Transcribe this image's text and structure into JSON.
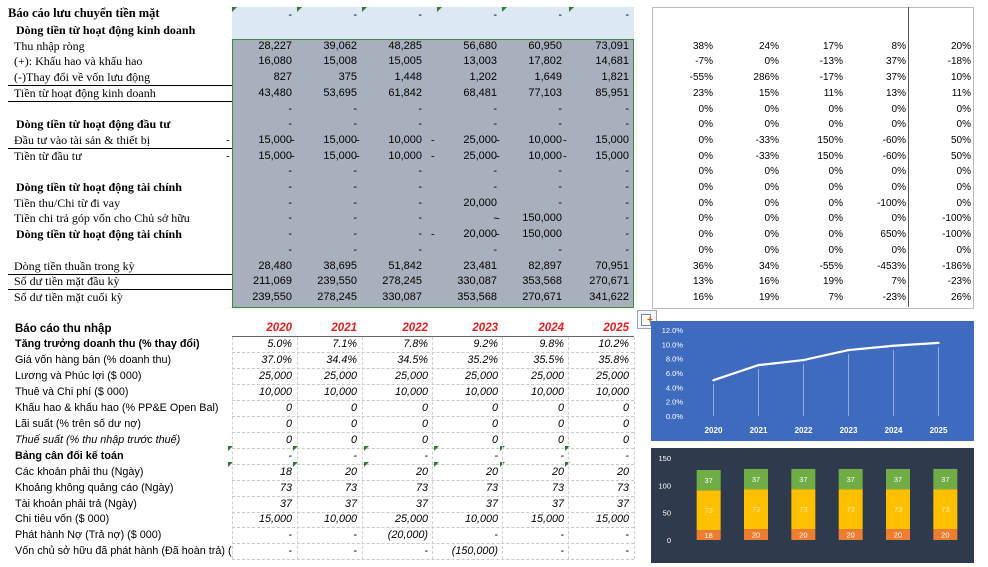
{
  "cashflow": {
    "title": "Báo cáo lưu chuyển tiền mặt",
    "rows": [
      {
        "label": "Dòng tiền từ hoạt động kinh doanh",
        "bold": true,
        "indent": 1,
        "values": [
          "",
          "",
          "",
          "",
          "",
          ""
        ],
        "pct": []
      },
      {
        "label": "Thu nhập ròng",
        "values": [
          "28,227",
          "39,062",
          "48,285",
          "56,680",
          "60,950",
          "73,091"
        ],
        "pct": [
          "38%",
          "24%",
          "17%",
          "8%",
          "20%"
        ]
      },
      {
        "label": "(+): Khấu hao và khấu hao",
        "values": [
          "16,080",
          "15,008",
          "15,005",
          "13,003",
          "17,802",
          "14,681"
        ],
        "pct": [
          "-7%",
          "0%",
          "-13%",
          "37%",
          "-18%"
        ]
      },
      {
        "label": "(-)Thay đổi về vốn lưu động",
        "values": [
          "827",
          "375",
          "1,448",
          "1,202",
          "1,649",
          "1,821"
        ],
        "pct": [
          "-55%",
          "286%",
          "-17%",
          "37%",
          "10%"
        ]
      },
      {
        "label": "Tiền từ hoạt động kinh doanh",
        "values": [
          "43,480",
          "53,695",
          "61,842",
          "68,481",
          "77,103",
          "85,951"
        ],
        "pct": [
          "23%",
          "15%",
          "11%",
          "13%",
          "11%"
        ]
      },
      {
        "label": "",
        "values": [
          "-",
          "-",
          "-",
          "-",
          "-",
          "-"
        ],
        "pct": [
          "0%",
          "0%",
          "0%",
          "0%",
          "0%"
        ]
      },
      {
        "label": "Dòng tiền từ hoạt động đầu tư",
        "bold": true,
        "values": [
          "-",
          "-",
          "-",
          "-",
          "-",
          "-"
        ],
        "pct": [
          "0%",
          "0%",
          "0%",
          "0%",
          "0%"
        ]
      },
      {
        "label": "Đầu tư vào tài sản & thiết bị",
        "values": [
          "15,000",
          "15,000",
          "10,000",
          "25,000",
          "10,000",
          "15,000"
        ],
        "pct": [
          "0%",
          "-33%",
          "150%",
          "-60%",
          "50%"
        ]
      },
      {
        "label": "Tiền từ đầu tư",
        "values": [
          "15,000",
          "15,000",
          "10,000",
          "25,000",
          "10,000",
          "15,000"
        ],
        "pct": [
          "0%",
          "-33%",
          "150%",
          "-60%",
          "50%"
        ]
      },
      {
        "label": "",
        "values": [
          "-",
          "-",
          "-",
          "-",
          "-",
          "-"
        ],
        "pct": [
          "0%",
          "0%",
          "0%",
          "0%",
          "0%"
        ]
      },
      {
        "label": "Dòng tiền từ hoạt động tài chính",
        "bold": true,
        "values": [
          "-",
          "-",
          "-",
          "-",
          "-",
          "-"
        ],
        "pct": [
          "0%",
          "0%",
          "0%",
          "0%",
          "0%"
        ]
      },
      {
        "label": "Tiền thu/Chi từ đi vay",
        "values": [
          "-",
          "-",
          "-",
          "20,000",
          "-",
          "-"
        ],
        "pct": [
          "0%",
          "0%",
          "0%",
          "-100%",
          "0%"
        ]
      },
      {
        "label": "Tiền chi trả góp vốn cho Chủ sở hữu",
        "values": [
          "-",
          "-",
          "-",
          "-",
          "150,000",
          "-"
        ],
        "pct": [
          "0%",
          "0%",
          "0%",
          "0%",
          "-100%"
        ]
      },
      {
        "label": "Dòng tiền từ hoạt động tài chính",
        "bold": true,
        "values": [
          "-",
          "-",
          "-",
          "20,000",
          "150,000",
          "-"
        ],
        "pct": [
          "0%",
          "0%",
          "0%",
          "650%",
          "-100%"
        ]
      },
      {
        "label": "",
        "values": [
          "-",
          "-",
          "-",
          "-",
          "-",
          "-"
        ],
        "pct": [
          "0%",
          "0%",
          "0%",
          "0%",
          "0%"
        ]
      },
      {
        "label": "Dòng tiền thuần trong kỳ",
        "values": [
          "28,480",
          "38,695",
          "51,842",
          "23,481",
          "82,897",
          "70,951"
        ],
        "pct": [
          "36%",
          "34%",
          "-55%",
          "-453%",
          "-186%"
        ]
      },
      {
        "label": "Số dư tiền mặt đầu kỳ",
        "values": [
          "211,069",
          "239,550",
          "278,245",
          "330,087",
          "353,568",
          "270,671"
        ],
        "pct": [
          "13%",
          "16%",
          "19%",
          "7%",
          "-23%"
        ]
      },
      {
        "label": "Số dư tiền mặt cuối kỳ",
        "values": [
          "239,550",
          "278,245",
          "330,087",
          "353,568",
          "270,671",
          "341,622"
        ],
        "pct": [
          "16%",
          "19%",
          "7%",
          "-23%",
          "26%"
        ]
      }
    ]
  },
  "income": {
    "title": "Báo cáo thu nhập",
    "years": [
      "2020",
      "2021",
      "2022",
      "2023",
      "2024",
      "2025"
    ],
    "rows": [
      {
        "label": "Tăng trưởng doanh thu (% thay đổi)",
        "bold": true,
        "values": [
          "5.0%",
          "7.1%",
          "7.8%",
          "9.2%",
          "9.8%",
          "10.2%"
        ]
      },
      {
        "label": "Giá vốn hàng bán (% doanh thu)",
        "values": [
          "37.0%",
          "34.4%",
          "34.5%",
          "35.2%",
          "35.5%",
          "35.8%"
        ]
      },
      {
        "label": "Lương và Phúc lợi ($ 000)",
        "values": [
          "25,000",
          "25,000",
          "25,000",
          "25,000",
          "25,000",
          "25,000"
        ]
      },
      {
        "label": "Thuê và Chi phí ($ 000)",
        "values": [
          "10,000",
          "10,000",
          "10,000",
          "10,000",
          "10,000",
          "10,000"
        ]
      },
      {
        "label": "Khấu hao & khấu hao (% PP&E Open Bal)",
        "values": [
          "0",
          "0",
          "0",
          "0",
          "0",
          "0"
        ]
      },
      {
        "label": "Lãi suất (% trên số dư nợ)",
        "values": [
          "0",
          "0",
          "0",
          "0",
          "0",
          "0"
        ]
      },
      {
        "label": "Thuế suất (% thu nhập trước thuế)",
        "italic": true,
        "values": [
          "0",
          "0",
          "0",
          "0",
          "0",
          "0"
        ]
      },
      {
        "label": "Bảng cân đối kế toán",
        "bold": true,
        "values": [
          "-",
          "-",
          "-",
          "-",
          "-",
          "-"
        ]
      },
      {
        "label": "Các khoản phải thu (Ngày)",
        "values": [
          "18",
          "20",
          "20",
          "20",
          "20",
          "20"
        ]
      },
      {
        "label": "Khoảng không quảng cáo (Ngày)",
        "values": [
          "73",
          "73",
          "73",
          "73",
          "73",
          "73"
        ]
      },
      {
        "label": "Tài khoản phải trả (Ngày)",
        "values": [
          "37",
          "37",
          "37",
          "37",
          "37",
          "37"
        ]
      },
      {
        "label": "Chi tiêu vốn ($ 000)",
        "values": [
          "15,000",
          "10,000",
          "25,000",
          "10,000",
          "15,000",
          "15,000"
        ]
      },
      {
        "label": "Phát hành Nợ (Trả nợ) ($ 000)",
        "values": [
          "-",
          "-",
          "(20,000)",
          "-",
          "-",
          "-"
        ]
      },
      {
        "label": "Vốn chủ sở hữu đã phát hành (Đã hoàn trả) (",
        "values": [
          "-",
          "-",
          "-",
          "(150,000)",
          "-",
          "-"
        ]
      }
    ]
  },
  "chart_data": [
    {
      "type": "line",
      "categories": [
        "2020",
        "2021",
        "2022",
        "2023",
        "2024",
        "2025"
      ],
      "values": [
        0.05,
        0.071,
        0.078,
        0.092,
        0.098,
        0.102
      ],
      "yticks": [
        "0.0%",
        "2.0%",
        "4.0%",
        "6.0%",
        "8.0%",
        "10.0%",
        "12.0%"
      ],
      "ylim": [
        0,
        0.12
      ],
      "background": "#3f6bbf",
      "line_color": "#ffffff"
    },
    {
      "type": "bar",
      "stacked": true,
      "categories": [
        "2020",
        "2021",
        "2022",
        "2023",
        "2024",
        "2025"
      ],
      "series": [
        {
          "values": [
            18,
            20,
            20,
            20,
            20,
            20
          ],
          "color": "#ed7d31"
        },
        {
          "values": [
            73,
            73,
            73,
            73,
            73,
            73
          ],
          "color": "#ffc000"
        },
        {
          "values": [
            37,
            37,
            37,
            37,
            37,
            37
          ],
          "color": "#70ad47"
        }
      ],
      "yticks": [
        "0",
        "50",
        "100",
        "150"
      ],
      "ylim": [
        0,
        150
      ],
      "background": "#2f3a4d"
    }
  ],
  "colors": {
    "highlight": "#a9b0bd",
    "blue_header": "#dce8f4",
    "year_red": "#e02020",
    "border_green": "#3a8a3a"
  },
  "icons": {
    "paste_options": "paste-options-icon"
  }
}
